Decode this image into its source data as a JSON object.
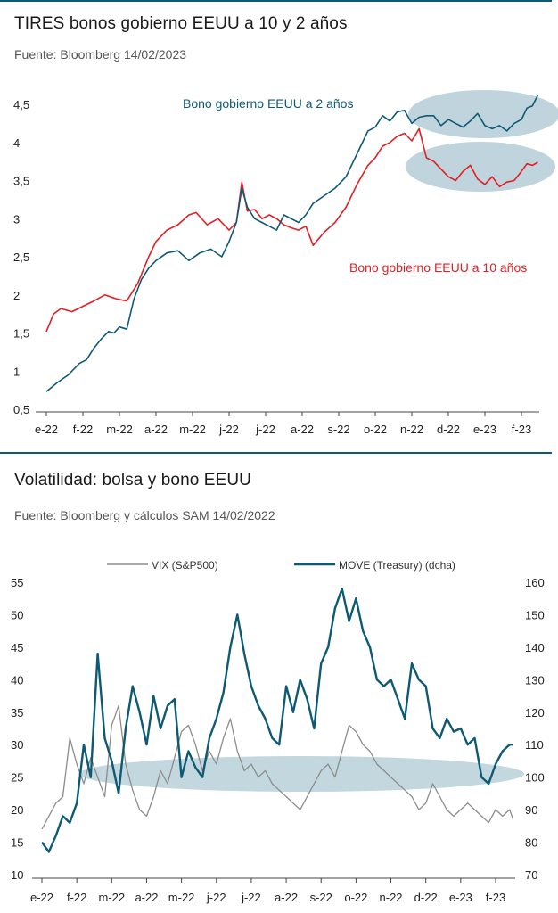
{
  "colors": {
    "rule": "#0e5a74",
    "teal": "#0e5a74",
    "red": "#e31e24",
    "gray": "#8c8c8c",
    "ellipse": "#a9c6d0"
  },
  "chart1": {
    "title": "TIRES bonos gobierno EEUU a 10 y 2 años",
    "source": "Fuente: Bloomberg 14/02/2023",
    "chart_data": {
      "type": "line",
      "ylim": [
        0.5,
        4.5
      ],
      "yticks": [
        "4,5",
        "4",
        "3,5",
        "3",
        "2,5",
        "2",
        "1,5",
        "1",
        "0,5"
      ],
      "xticks": [
        "e-22",
        "f-22",
        "m-22",
        "a-22",
        "m-22",
        "j-22",
        "j-22",
        "a-22",
        "s-22",
        "o-22",
        "n-22",
        "d-22",
        "e-23",
        "f-23"
      ],
      "series": [
        {
          "name": "Bono gobierno EEUU a 2 años",
          "color": "#0e5a74",
          "x": [
            0,
            0.3,
            0.6,
            0.9,
            1.1,
            1.3,
            1.5,
            1.7,
            1.85,
            2.0,
            2.2,
            2.4,
            2.6,
            2.8,
            3.0,
            3.3,
            3.6,
            3.9,
            4.2,
            4.5,
            4.8,
            5.0,
            5.2,
            5.35,
            5.5,
            5.7,
            5.9,
            6.1,
            6.3,
            6.5,
            6.7,
            6.9,
            7.1,
            7.3,
            7.6,
            7.9,
            8.2,
            8.5,
            8.8,
            9.0,
            9.2,
            9.4,
            9.6,
            9.8,
            10.0,
            10.2,
            10.4,
            10.6,
            10.8,
            11.0,
            11.2,
            11.4,
            11.6,
            11.8,
            12.0,
            12.2,
            12.4,
            12.6,
            12.8,
            13.0,
            13.15,
            13.3,
            13.45
          ],
          "values": [
            0.73,
            0.85,
            0.95,
            1.1,
            1.15,
            1.3,
            1.42,
            1.52,
            1.5,
            1.58,
            1.55,
            1.95,
            2.2,
            2.35,
            2.45,
            2.55,
            2.58,
            2.45,
            2.55,
            2.6,
            2.5,
            2.7,
            2.95,
            3.4,
            3.15,
            3.0,
            2.95,
            2.9,
            2.85,
            3.05,
            3.0,
            2.95,
            3.05,
            3.2,
            3.3,
            3.4,
            3.55,
            3.85,
            4.15,
            4.2,
            4.35,
            4.28,
            4.4,
            4.42,
            4.25,
            4.33,
            4.35,
            4.35,
            4.22,
            4.3,
            4.25,
            4.2,
            4.28,
            4.38,
            4.22,
            4.18,
            4.22,
            4.15,
            4.25,
            4.3,
            4.45,
            4.48,
            4.62
          ]
        },
        {
          "name": "Bono gobierno EEUU a 10 años",
          "color": "#e31e24",
          "x": [
            0,
            0.2,
            0.4,
            0.7,
            1.0,
            1.3,
            1.6,
            1.9,
            2.2,
            2.5,
            2.8,
            3.0,
            3.3,
            3.6,
            3.9,
            4.1,
            4.4,
            4.7,
            5.0,
            5.2,
            5.35,
            5.5,
            5.7,
            5.9,
            6.1,
            6.3,
            6.5,
            6.7,
            6.9,
            7.1,
            7.3,
            7.6,
            7.9,
            8.2,
            8.5,
            8.8,
            9.0,
            9.2,
            9.4,
            9.6,
            9.8,
            10.0,
            10.2,
            10.4,
            10.6,
            10.8,
            11.0,
            11.2,
            11.4,
            11.6,
            11.8,
            12.0,
            12.2,
            12.4,
            12.6,
            12.8,
            13.0,
            13.15,
            13.3,
            13.45
          ],
          "values": [
            1.52,
            1.75,
            1.82,
            1.78,
            1.85,
            1.92,
            2.0,
            1.95,
            1.92,
            2.15,
            2.5,
            2.7,
            2.85,
            2.92,
            3.05,
            3.08,
            2.92,
            3.0,
            2.85,
            2.95,
            3.48,
            3.1,
            3.12,
            3.0,
            3.05,
            3.0,
            2.92,
            2.88,
            2.85,
            2.9,
            2.65,
            2.82,
            2.95,
            3.15,
            3.45,
            3.7,
            3.8,
            3.95,
            4.0,
            4.08,
            4.12,
            4.02,
            4.18,
            3.8,
            3.75,
            3.65,
            3.55,
            3.5,
            3.62,
            3.7,
            3.52,
            3.45,
            3.55,
            3.42,
            3.48,
            3.5,
            3.62,
            3.72,
            3.7,
            3.74
          ]
        }
      ],
      "annotations": [
        "Bono gobierno EEUU a 2 años",
        "Bono gobierno EEUU a 10 años"
      ]
    }
  },
  "chart2": {
    "title": "Volatilidad: bolsa y bono EEUU",
    "source": "Fuente: Bloomberg y cálculos SAM 14/02/2022",
    "chart_data": {
      "type": "line",
      "ylim": [
        10,
        55
      ],
      "y2lim": [
        70,
        160
      ],
      "yticks": [
        "55",
        "50",
        "45",
        "40",
        "35",
        "30",
        "25",
        "20",
        "15",
        "10"
      ],
      "y2ticks": [
        "160",
        "150",
        "140",
        "130",
        "120",
        "110",
        "100",
        "90",
        "80",
        "70"
      ],
      "xticks": [
        "e-22",
        "f-22",
        "m-22",
        "a-22",
        "m-22",
        "j-22",
        "j-22",
        "a-22",
        "s-22",
        "o-22",
        "n-22",
        "d-22",
        "e-23",
        "f-23"
      ],
      "series": [
        {
          "name": "VIX (S&P500)",
          "axis": "left",
          "color": "#8c8c8c",
          "x": [
            0,
            0.2,
            0.4,
            0.6,
            0.8,
            1.0,
            1.2,
            1.4,
            1.6,
            1.8,
            2.0,
            2.2,
            2.4,
            2.6,
            2.8,
            3.0,
            3.2,
            3.4,
            3.6,
            3.8,
            4.0,
            4.2,
            4.4,
            4.6,
            4.8,
            5.0,
            5.2,
            5.4,
            5.6,
            5.8,
            6.0,
            6.2,
            6.4,
            6.6,
            6.8,
            7.0,
            7.2,
            7.4,
            7.6,
            7.8,
            8.0,
            8.2,
            8.4,
            8.6,
            8.8,
            9.0,
            9.2,
            9.4,
            9.6,
            9.8,
            10.0,
            10.2,
            10.4,
            10.6,
            10.8,
            11.0,
            11.2,
            11.4,
            11.6,
            11.8,
            12.0,
            12.2,
            12.4,
            12.6,
            12.8,
            13.0,
            13.2,
            13.4,
            13.5
          ],
          "values": [
            17,
            19,
            21,
            22,
            31,
            27,
            24,
            28,
            25,
            22,
            33,
            36,
            27,
            23,
            20,
            19,
            22,
            26,
            24,
            28,
            32,
            33,
            30,
            26,
            29,
            27,
            31,
            34,
            29,
            26,
            27,
            25,
            26,
            24,
            23,
            22,
            21,
            20,
            22,
            24,
            26,
            27,
            25,
            29,
            33,
            32,
            30,
            29,
            27,
            26,
            25,
            24,
            23,
            22,
            20,
            21,
            24,
            22,
            20,
            19,
            20,
            21,
            20,
            19,
            18,
            20,
            19,
            20,
            18.5
          ]
        },
        {
          "name": "MOVE (Treasury) (dcha)",
          "axis": "right",
          "color": "#0e5a74",
          "x": [
            0,
            0.2,
            0.4,
            0.6,
            0.8,
            1.0,
            1.2,
            1.4,
            1.6,
            1.8,
            2.0,
            2.2,
            2.4,
            2.6,
            2.8,
            3.0,
            3.2,
            3.4,
            3.6,
            3.8,
            4.0,
            4.2,
            4.4,
            4.6,
            4.8,
            5.0,
            5.2,
            5.4,
            5.6,
            5.8,
            6.0,
            6.2,
            6.4,
            6.6,
            6.8,
            7.0,
            7.2,
            7.4,
            7.6,
            7.8,
            8.0,
            8.2,
            8.4,
            8.6,
            8.8,
            9.0,
            9.2,
            9.4,
            9.6,
            9.8,
            10.0,
            10.2,
            10.4,
            10.6,
            10.8,
            11.0,
            11.2,
            11.4,
            11.6,
            11.8,
            12.0,
            12.2,
            12.4,
            12.6,
            12.8,
            13.0,
            13.2,
            13.4,
            13.5
          ],
          "values": [
            80,
            77,
            82,
            88,
            86,
            92,
            110,
            100,
            138,
            112,
            105,
            95,
            115,
            128,
            120,
            110,
            125,
            115,
            122,
            124,
            100,
            108,
            103,
            100,
            112,
            118,
            126,
            140,
            150,
            138,
            128,
            122,
            118,
            112,
            110,
            128,
            120,
            130,
            124,
            115,
            135,
            140,
            152,
            158,
            148,
            155,
            145,
            140,
            130,
            128,
            130,
            124,
            118,
            135,
            130,
            128,
            115,
            112,
            118,
            114,
            115,
            110,
            112,
            100,
            98,
            104,
            108,
            110,
            110
          ]
        }
      ],
      "legend": "top"
    }
  }
}
